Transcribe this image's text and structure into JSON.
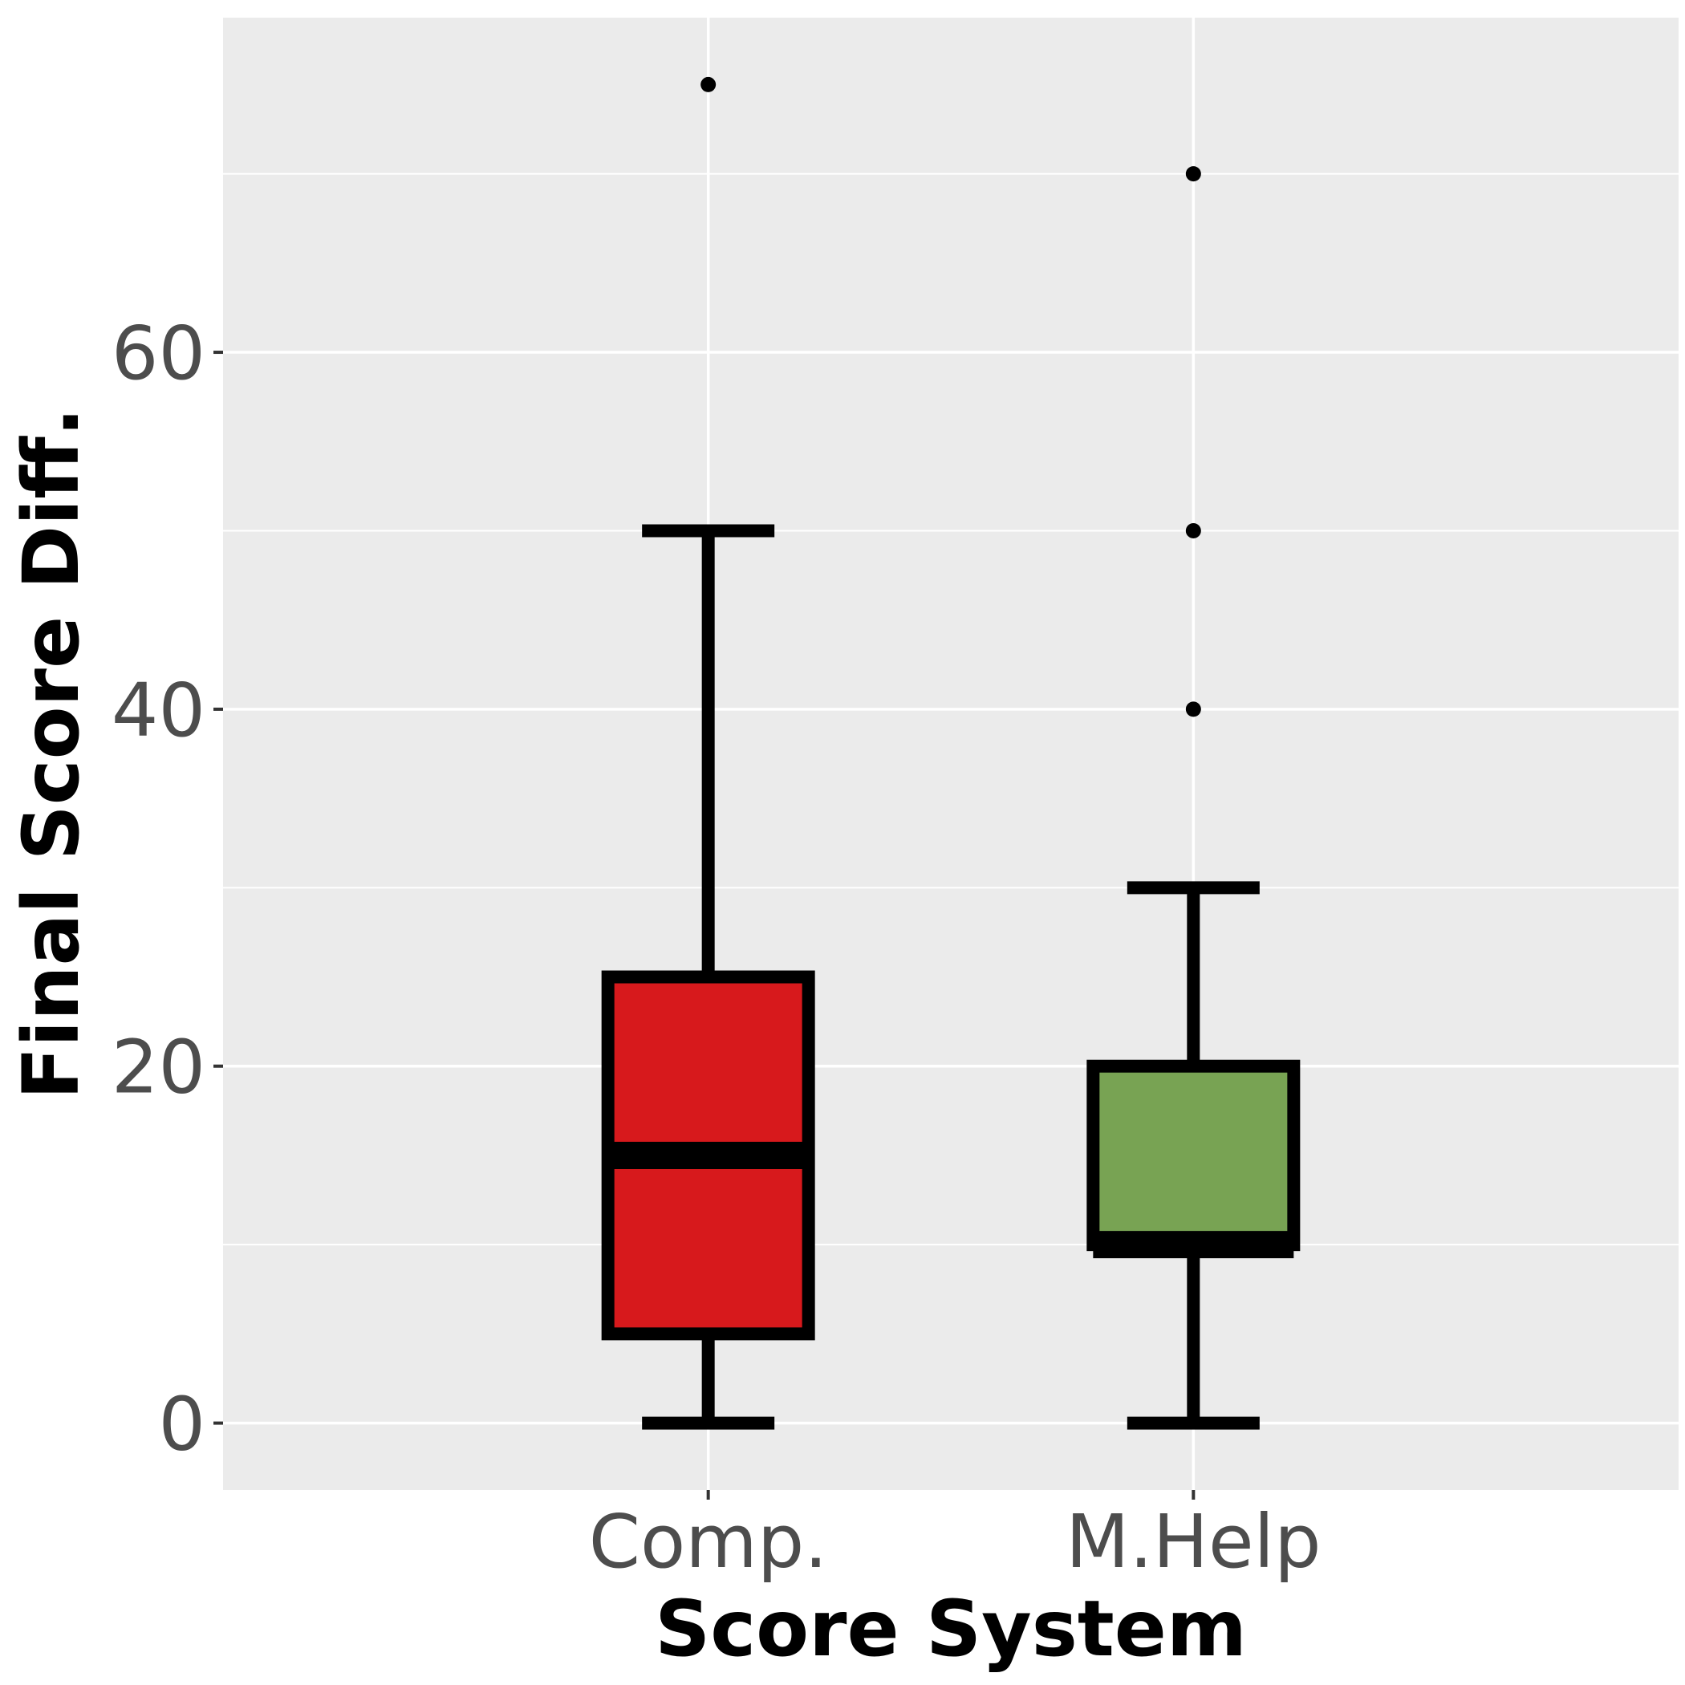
{
  "chart_data": {
    "type": "box",
    "xlabel": "Score System",
    "ylabel": "Final Score Diff.",
    "categories": [
      "Comp.",
      "M.Help"
    ],
    "ylim": [
      -3.75,
      78.75
    ],
    "y_ticks": [
      0,
      20,
      40,
      60
    ],
    "y_tick_labels": [
      "0",
      "20",
      "40",
      "60"
    ],
    "y_minor_gridlines": [
      10,
      30,
      50,
      70
    ],
    "grid": true,
    "legend": "none",
    "boxes": [
      {
        "category": "Comp.",
        "whisker_low": 0,
        "q1": 5,
        "median": 15,
        "q3": 25,
        "whisker_high": 50,
        "outliers": [
          75
        ],
        "fill": "#d7191c"
      },
      {
        "category": "M.Help",
        "whisker_low": 0,
        "q1": 10,
        "median": 10,
        "q3": 20,
        "whisker_high": 30,
        "outliers": [
          40,
          50,
          70
        ],
        "fill": "#78a353"
      }
    ],
    "colors": {
      "panel_background": "#ebebeb",
      "gridline": "#ffffff",
      "box_outline": "#000000",
      "tick_label": "#4d4d4d",
      "axis_title": "#000000"
    }
  }
}
